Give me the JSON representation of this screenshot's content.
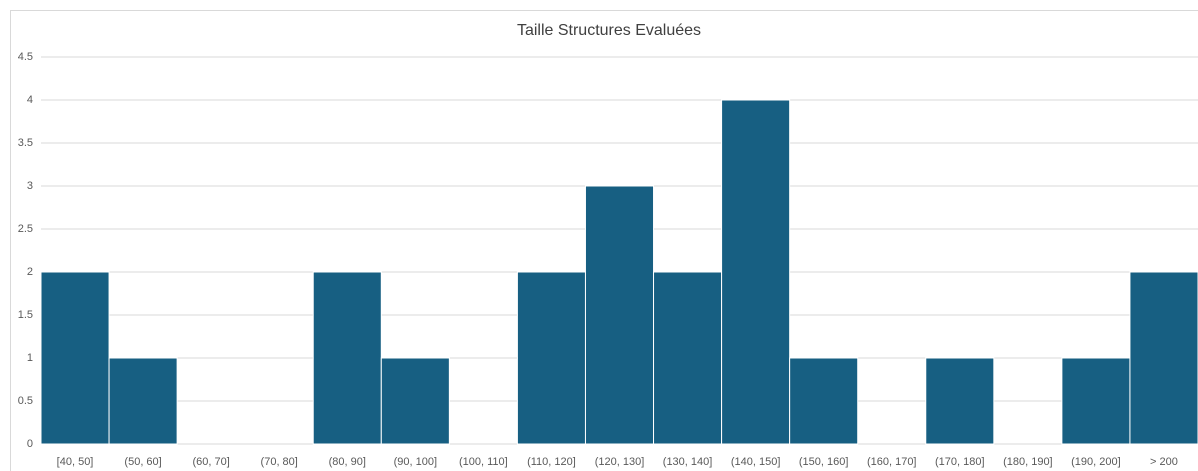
{
  "chart_data": {
    "type": "bar",
    "title": "Taille Structures Evaluées",
    "categories": [
      "[40, 50]",
      "(50, 60]",
      "(60, 70]",
      "(70, 80]",
      "(80, 90]",
      "(90, 100]",
      "(100, 110]",
      "(110, 120]",
      "(120, 130]",
      "(130, 140]",
      "(140, 150]",
      "(150, 160]",
      "(160, 170]",
      "(170, 180]",
      "(180, 190]",
      "(190, 200]",
      "> 200"
    ],
    "values": [
      2,
      1,
      0,
      0,
      2,
      1,
      0,
      2,
      3,
      2,
      4,
      1,
      0,
      1,
      0,
      1,
      2
    ],
    "color": "#175f82",
    "ylim": [
      0,
      4.5
    ],
    "yticks": [
      0,
      0.5,
      1,
      1.5,
      2,
      2.5,
      3,
      3.5,
      4,
      4.5
    ],
    "grid": true
  }
}
